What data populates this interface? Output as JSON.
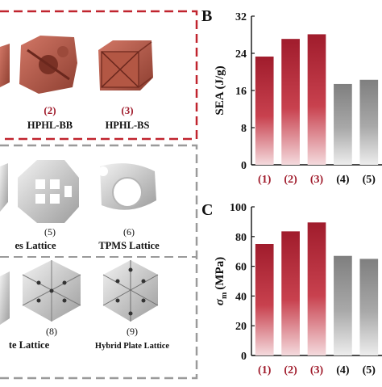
{
  "left": {
    "top_group": {
      "items": [
        {
          "num": "(2)",
          "name": "HPHL-BB"
        },
        {
          "num": "(3)",
          "name": "HPHL-BS"
        }
      ]
    },
    "middle_group": {
      "items": [
        {
          "num": "(5)",
          "name": "es Lattice"
        },
        {
          "num": "(6)",
          "name": "TPMS Lattice"
        }
      ]
    },
    "bottom_group": {
      "items": [
        {
          "num": "(8)",
          "name": "te Lattice"
        },
        {
          "num": "(9)",
          "name": "Hybrid Plate Lattice"
        }
      ]
    }
  },
  "colors": {
    "red_dark": "#a01c2c",
    "red_mid": "#c8414e",
    "gray_dark": "#7f7f7f",
    "frame_red": "#c0242e",
    "frame_gray": "#9a9a9a",
    "model_red": "#b85a48",
    "model_gray": "#d9d9d9"
  },
  "chart_data": [
    {
      "type": "bar",
      "panel_label": "B",
      "ylabel": "SEA (J/g)",
      "categories": [
        "(1)",
        "(2)",
        "(3)",
        "(4)",
        "(5)"
      ],
      "values": [
        23.3,
        27.1,
        28.1,
        17.4,
        18.3
      ],
      "category_colors": [
        "red",
        "red",
        "red",
        "gray",
        "gray"
      ],
      "ylim": [
        0,
        32
      ],
      "yticks": [
        "0",
        "8",
        "16",
        "24",
        "32"
      ],
      "grid": false
    },
    {
      "type": "bar",
      "panel_label": "C",
      "ylabel_symbol": "σ",
      "ylabel_sub": "m",
      "ylabel_unit": "(MPa)",
      "categories": [
        "(1)",
        "(2)",
        "(3)",
        "(4)",
        "(5)"
      ],
      "values": [
        75,
        83.5,
        89.5,
        67,
        65
      ],
      "category_colors": [
        "red",
        "red",
        "red",
        "gray",
        "gray"
      ],
      "ylim": [
        0,
        100
      ],
      "yticks": [
        "0",
        "20",
        "40",
        "60",
        "80",
        "100"
      ],
      "grid": false
    }
  ]
}
